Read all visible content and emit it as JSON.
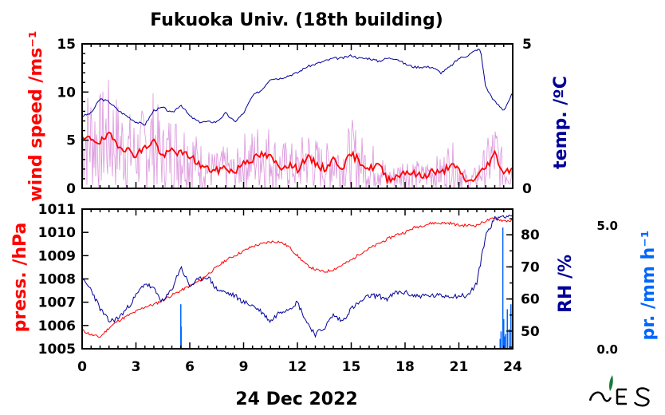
{
  "title": "Fukuoka Univ. (18th building)",
  "date_label": "24 Dec 2022",
  "colors": {
    "wind": "#ff0000",
    "wind_raw": "#cc66cc",
    "temp": "#000099",
    "press": "#ff0000",
    "rh": "#000099",
    "precip": "#0066ff"
  },
  "chart_data": [
    {
      "type": "line",
      "panel": "top",
      "x_label": "",
      "x_ticks": [
        "0",
        "3",
        "6",
        "9",
        "12",
        "15",
        "18",
        "21",
        "24"
      ],
      "xlim": [
        0,
        24
      ],
      "left_axis": {
        "label": "wind speed /ms⁻¹",
        "ticks": [
          "0",
          "5",
          "10",
          "15"
        ],
        "ylim": [
          0,
          15
        ]
      },
      "right_axis": {
        "label": "temp. /ºC",
        "ticks": [
          "0",
          "5"
        ],
        "ylim": [
          0,
          5
        ]
      },
      "series": [
        {
          "name": "wind speed",
          "axis": "left",
          "x": [
            0,
            0.5,
            1,
            1.5,
            2,
            2.5,
            3,
            3.5,
            4,
            4.5,
            5,
            5.5,
            6,
            6.5,
            7,
            7.5,
            8,
            8.5,
            9,
            9.5,
            10,
            10.5,
            11,
            11.5,
            12,
            12.5,
            13,
            13.5,
            14,
            14.5,
            15,
            15.5,
            16,
            16.5,
            17,
            17.5,
            18,
            18.5,
            19,
            19.5,
            20,
            20.5,
            21,
            21.5,
            22,
            22.5,
            23,
            23.5,
            24
          ],
          "y": [
            5.0,
            5.2,
            4.8,
            5.5,
            4.6,
            4.0,
            3.5,
            4.2,
            5.0,
            3.2,
            4.0,
            3.6,
            3.4,
            2.5,
            2.0,
            1.8,
            2.2,
            1.6,
            2.8,
            3.0,
            3.5,
            3.2,
            2.2,
            2.5,
            2.0,
            3.2,
            2.6,
            2.0,
            3.0,
            2.2,
            3.5,
            2.8,
            2.0,
            2.5,
            1.0,
            1.2,
            1.8,
            1.5,
            1.2,
            1.8,
            1.5,
            2.5,
            1.8,
            0.6,
            1.2,
            2.2,
            3.6,
            1.6,
            2.2
          ]
        },
        {
          "name": "temperature",
          "axis": "right",
          "x": [
            0,
            0.5,
            1,
            1.5,
            2,
            2.5,
            3,
            3.5,
            4,
            4.5,
            5,
            5.5,
            6,
            6.5,
            7,
            7.5,
            8,
            8.5,
            9,
            9.5,
            10,
            10.5,
            11,
            11.5,
            12,
            12.5,
            13,
            13.5,
            14,
            14.5,
            15,
            15.5,
            16,
            16.5,
            17,
            17.5,
            18,
            18.5,
            19,
            19.5,
            20,
            20.5,
            21,
            21.5,
            22,
            22.2,
            22.5,
            23,
            23.5,
            24
          ],
          "y": [
            2.5,
            2.6,
            3.1,
            3.0,
            2.7,
            2.5,
            2.3,
            2.2,
            2.7,
            2.8,
            2.6,
            2.9,
            2.5,
            2.3,
            2.3,
            2.3,
            2.6,
            2.3,
            2.6,
            3.2,
            3.4,
            3.8,
            3.8,
            3.9,
            4.0,
            4.2,
            4.3,
            4.4,
            4.5,
            4.5,
            4.6,
            4.5,
            4.5,
            4.4,
            4.5,
            4.5,
            4.3,
            4.2,
            4.2,
            4.2,
            4.0,
            4.2,
            4.5,
            4.6,
            4.8,
            4.8,
            3.5,
            3.0,
            2.7,
            3.3
          ]
        }
      ]
    },
    {
      "type": "line",
      "panel": "bottom",
      "x_ticks": [
        "0",
        "3",
        "6",
        "9",
        "12",
        "15",
        "18",
        "21",
        "24"
      ],
      "xlim": [
        0,
        24
      ],
      "left_axis": {
        "label": "press. /hPa",
        "ticks": [
          "1005",
          "1006",
          "1007",
          "1008",
          "1009",
          "1010",
          "1011"
        ],
        "ylim": [
          1005,
          1011
        ]
      },
      "right_axis": {
        "label": "RH /%",
        "ticks": [
          "50",
          "60",
          "70",
          "80"
        ],
        "ylim": [
          44.5,
          88
        ]
      },
      "far_right_axis": {
        "label": "pr. /mm h⁻¹",
        "ticks": [
          "0.0",
          "5.0"
        ],
        "ylim": [
          0,
          5.0
        ]
      },
      "series": [
        {
          "name": "pressure",
          "axis": "left",
          "x": [
            0,
            0.5,
            1,
            1.5,
            2,
            2.5,
            3,
            3.5,
            4,
            4.5,
            5,
            5.5,
            6,
            6.5,
            7,
            7.5,
            8,
            8.5,
            9,
            9.5,
            10,
            10.5,
            11,
            11.5,
            12,
            12.5,
            13,
            13.5,
            14,
            14.5,
            15,
            15.5,
            16,
            16.5,
            17,
            17.5,
            18,
            18.5,
            19,
            19.5,
            20,
            20.5,
            21,
            21.5,
            22,
            22.5,
            23,
            23.5,
            24
          ],
          "y": [
            1005.8,
            1005.6,
            1005.5,
            1005.9,
            1006.2,
            1006.4,
            1006.6,
            1006.8,
            1006.9,
            1007.1,
            1007.3,
            1007.5,
            1007.7,
            1007.9,
            1008.2,
            1008.5,
            1008.8,
            1009.0,
            1009.2,
            1009.4,
            1009.5,
            1009.6,
            1009.6,
            1009.4,
            1009.0,
            1008.6,
            1008.4,
            1008.3,
            1008.4,
            1008.6,
            1008.8,
            1009.1,
            1009.3,
            1009.5,
            1009.7,
            1009.9,
            1010.0,
            1010.2,
            1010.3,
            1010.4,
            1010.4,
            1010.4,
            1010.3,
            1010.3,
            1010.3,
            1010.5,
            1010.6,
            1010.5,
            1010.5
          ]
        },
        {
          "name": "relative humidity",
          "axis": "right",
          "x": [
            0,
            0.5,
            1,
            1.5,
            2,
            2.5,
            3,
            3.5,
            4,
            4.5,
            5,
            5.5,
            6,
            6.5,
            7,
            7.5,
            8,
            8.5,
            9,
            9.5,
            10,
            10.5,
            11,
            11.5,
            12,
            12.5,
            13,
            13.5,
            14,
            14.5,
            15,
            15.5,
            16,
            16.5,
            17,
            17.5,
            18,
            18.5,
            19,
            19.5,
            20,
            20.5,
            21,
            21.5,
            22,
            22.5,
            23,
            23.5,
            24
          ],
          "y": [
            66,
            63,
            57,
            53,
            54,
            57,
            61,
            65,
            63,
            59,
            63,
            70,
            64,
            66,
            67,
            63,
            62,
            61,
            59,
            58,
            56,
            53,
            56,
            57,
            59,
            53,
            49,
            51,
            55,
            53,
            57,
            59,
            61,
            61,
            60,
            62,
            62,
            61,
            61,
            61,
            61,
            61,
            61,
            61,
            65,
            80,
            85,
            86,
            86
          ]
        },
        {
          "name": "precipitation",
          "axis": "far_right",
          "type": "bar",
          "x": [
            5.5,
            5.52,
            23.3,
            23.35,
            23.45,
            23.5,
            23.55,
            23.6,
            23.7,
            23.8,
            23.9
          ],
          "y": [
            1.8,
            0.9,
            0.4,
            0.7,
            4.9,
            1.2,
            0.5,
            0.6,
            1.6,
            0.8,
            1.8
          ]
        }
      ]
    }
  ]
}
